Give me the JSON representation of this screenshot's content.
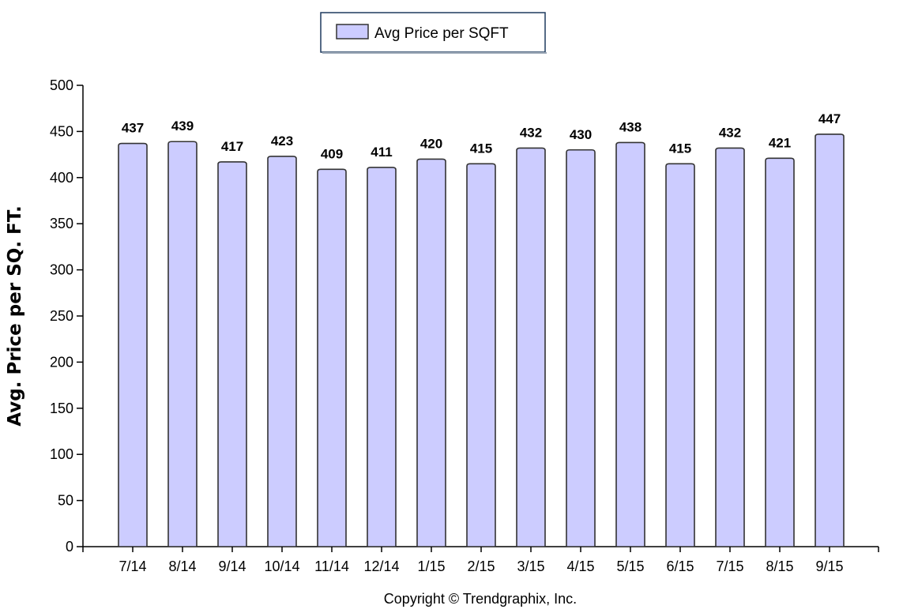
{
  "chart_data": {
    "type": "bar",
    "categories": [
      "7/14",
      "8/14",
      "9/14",
      "10/14",
      "11/14",
      "12/14",
      "1/15",
      "2/15",
      "3/15",
      "4/15",
      "5/15",
      "6/15",
      "7/15",
      "8/15",
      "9/15"
    ],
    "series": [
      {
        "name": "Avg Price per SQFT",
        "values": [
          437,
          439,
          417,
          423,
          409,
          411,
          420,
          415,
          432,
          430,
          438,
          415,
          432,
          421,
          447
        ],
        "color": "#ccccff"
      }
    ],
    "ylabel": "Avg. Price per SQ. FT.",
    "xlabel": "",
    "ylim": [
      0,
      500
    ],
    "yticks": [
      0,
      50,
      100,
      150,
      200,
      250,
      300,
      350,
      400,
      450,
      500
    ],
    "data_labels": true,
    "grid": false,
    "legend_position": "top-center"
  },
  "footer": {
    "copyright": "Copyright © Trendgraphix, Inc."
  },
  "colors": {
    "bar_fill": "#ccccff",
    "bar_stroke": "#333333",
    "axis": "#000000"
  }
}
